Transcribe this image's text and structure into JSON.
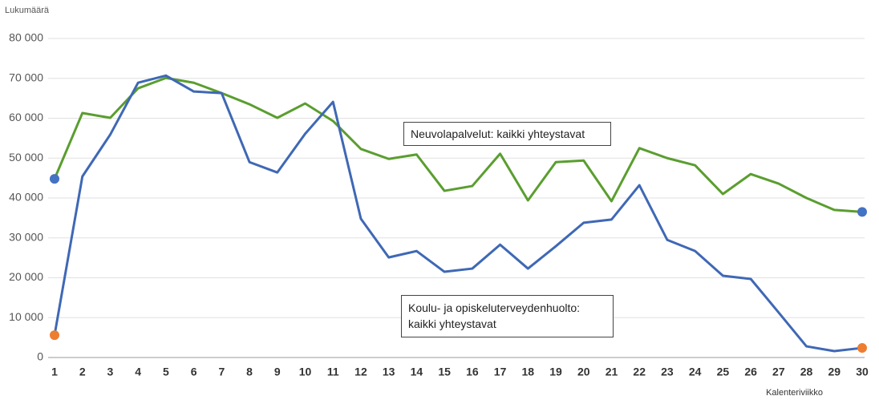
{
  "chart_data": {
    "type": "line",
    "y_axis_label": "Lukumäärä",
    "x_axis_label": "Kalenteriviikko",
    "x": [
      1,
      2,
      3,
      4,
      5,
      6,
      7,
      8,
      9,
      10,
      11,
      12,
      13,
      14,
      15,
      16,
      17,
      18,
      19,
      20,
      21,
      22,
      23,
      24,
      25,
      26,
      27,
      28,
      29,
      30
    ],
    "xlim": [
      1,
      30
    ],
    "xticks": [
      1,
      2,
      3,
      4,
      5,
      6,
      7,
      8,
      9,
      10,
      11,
      12,
      13,
      14,
      15,
      16,
      17,
      18,
      19,
      20,
      21,
      22,
      23,
      24,
      25,
      26,
      27,
      28,
      29,
      30
    ],
    "ylim": [
      0,
      80000
    ],
    "yticks": [
      0,
      {
        "value": 10000,
        "label": "10 000"
      },
      {
        "value": 20000,
        "label": "20 000"
      },
      {
        "value": 30000,
        "label": "30 000"
      },
      {
        "value": 40000,
        "label": "40 000"
      },
      {
        "value": 50000,
        "label": "50 000"
      },
      {
        "value": 60000,
        "label": "60 000"
      },
      {
        "value": 70000,
        "label": "70 000"
      },
      {
        "value": 80000,
        "label": "80 000"
      }
    ],
    "grid": true,
    "series": [
      {
        "name": "Neuvolapalvelut: kaikki yhteystavat",
        "color": "#5a9e2f",
        "marker_color": "#4472c4",
        "values": [
          44800,
          61300,
          60100,
          67500,
          70100,
          68900,
          66300,
          63500,
          60100,
          63700,
          59300,
          52300,
          49800,
          50900,
          41800,
          43000,
          51100,
          39400,
          49000,
          49400,
          39200,
          52500,
          50000,
          48200,
          41000,
          46000,
          43600,
          40000,
          37000,
          36500
        ]
      },
      {
        "name": "Koulu- ja opiskeluterveydenhuolto: kaikki yhteystavat",
        "color": "#3f68b5",
        "marker_color": "#ed7d31",
        "values": [
          5600,
          45400,
          55900,
          68900,
          70700,
          66700,
          66300,
          49000,
          46400,
          56100,
          64100,
          34800,
          25100,
          26700,
          21500,
          22300,
          28300,
          22300,
          27900,
          33800,
          34600,
          43200,
          29500,
          26700,
          20500,
          19700,
          11300,
          2800,
          1600,
          2400
        ]
      }
    ]
  }
}
